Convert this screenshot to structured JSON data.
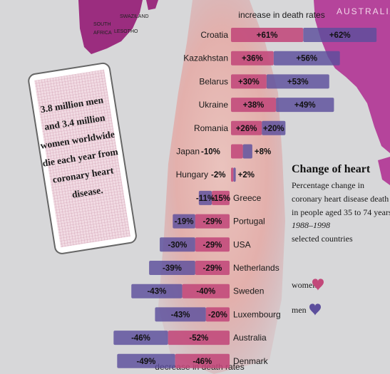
{
  "map": {
    "labels": {
      "swaziland": "SWAZILAND",
      "south_africa_1": "SOUTH",
      "south_africa_2": "AFRICA",
      "lesotho": "LESOTHO",
      "australia": "AUSTRALIA"
    },
    "colors": {
      "land": "#9b2d7f",
      "land_light": "#b5449b",
      "heart": "#e8a5a0"
    }
  },
  "note": {
    "lines": [
      "3.8 million men",
      "and 3.4 million",
      "women worldwide",
      "die each year from",
      "coronary heart",
      "disease."
    ]
  },
  "chart_data": {
    "type": "bar",
    "title": "Change of heart",
    "subtitle": [
      "Percentage change in",
      "coronary heart disease death rates,",
      "in people aged 35 to 74 years"
    ],
    "period": "1988–1998",
    "selection": "selected countries",
    "top_caption": "increase in death rates",
    "bottom_caption": "decrease in death rates",
    "categories": [
      "Croatia",
      "Kazakhstan",
      "Belarus",
      "Ukraine",
      "Romania",
      "Japan",
      "Hungary",
      "Greece",
      "Portugal",
      "USA",
      "Netherlands",
      "Sweden",
      "Luxembourg",
      "Australia",
      "Denmark"
    ],
    "series": [
      {
        "name": "women",
        "color": "#c2487a",
        "values": [
          61,
          36,
          30,
          38,
          26,
          -10,
          -2,
          -15,
          -29,
          -29,
          -29,
          -40,
          -20,
          -52,
          -46
        ],
        "labels": [
          "+61%",
          "+36%",
          "+30%",
          "+38%",
          "+26%",
          "-10%",
          "-2%",
          "-15%",
          "-29%",
          "-29%",
          "-29%",
          "-40%",
          "-20%",
          "-52%",
          "-46%"
        ]
      },
      {
        "name": "men",
        "color": "#5c4e9c",
        "values": [
          62,
          56,
          53,
          49,
          20,
          8,
          2,
          -11,
          -19,
          -30,
          -39,
          -43,
          -43,
          -46,
          -49
        ],
        "labels": [
          "+62%",
          "+56%",
          "+53%",
          "+49%",
          "+20%",
          "+8%",
          "+2%",
          "-11%",
          "-19%",
          "-30%",
          "-39%",
          "-43%",
          "-43%",
          "-46%",
          "-49%"
        ]
      }
    ],
    "legend": [
      "women",
      "men"
    ],
    "legend_placement": "right"
  }
}
